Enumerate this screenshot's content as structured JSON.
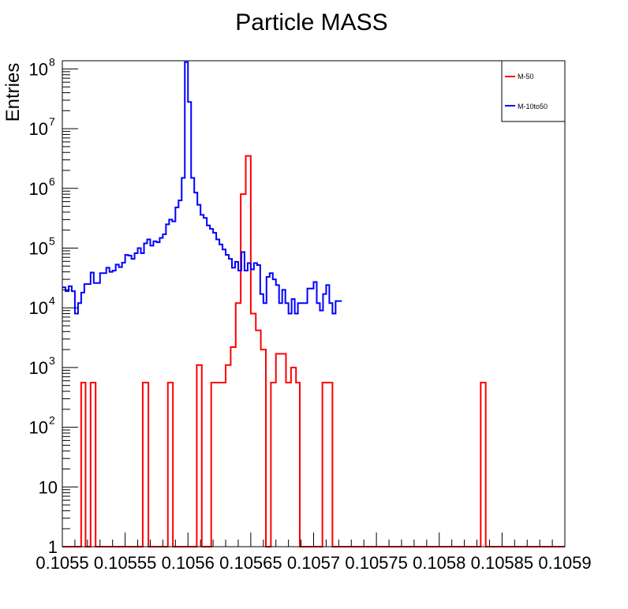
{
  "chart_data": {
    "type": "histogram",
    "title": "Particle MASS",
    "xlabel": "",
    "ylabel": "Entries",
    "xlim": [
      0.1055,
      0.1059
    ],
    "ylim": [
      1,
      130000000
    ],
    "yscale": "log",
    "grid": false,
    "legend_position": "top-right",
    "bin_width": 2.5e-06,
    "bin_start": 0.1055,
    "x_tick_labels": [
      "0.1055",
      "0.10555",
      "0.1056",
      "0.10565",
      "0.1057",
      "0.10575",
      "0.1058",
      "0.10585",
      "0.1059"
    ],
    "x_tick_values": [
      0.1055,
      0.10555,
      0.1056,
      0.10565,
      0.1057,
      0.10575,
      0.1058,
      0.10585,
      0.1059
    ],
    "y_ticks": [
      {
        "value": 1,
        "base": "1",
        "exp": ""
      },
      {
        "value": 10,
        "base": "10",
        "exp": ""
      },
      {
        "value": 100,
        "base": "10",
        "exp": "2"
      },
      {
        "value": 1000,
        "base": "10",
        "exp": "3"
      },
      {
        "value": 10000,
        "base": "10",
        "exp": "4"
      },
      {
        "value": 100000,
        "base": "10",
        "exp": "5"
      },
      {
        "value": 1000000,
        "base": "10",
        "exp": "6"
      },
      {
        "value": 10000000,
        "base": "10",
        "exp": "7"
      },
      {
        "value": 100000000,
        "base": "10",
        "exp": "8"
      }
    ],
    "series": [
      {
        "name": "M-50",
        "color": "#ff0000",
        "bins": [
          {
            "x0": 0.1055,
            "x1": 0.105515,
            "y": 1
          },
          {
            "x0": 0.105515,
            "x1": 0.1055185,
            "y": 560
          },
          {
            "x0": 0.1055185,
            "x1": 0.1055225,
            "y": 1
          },
          {
            "x0": 0.1055225,
            "x1": 0.1055265,
            "y": 560
          },
          {
            "x0": 0.1055265,
            "x1": 0.105564,
            "y": 1
          },
          {
            "x0": 0.105564,
            "x1": 0.1055685,
            "y": 560
          },
          {
            "x0": 0.1055685,
            "x1": 0.105584,
            "y": 1
          },
          {
            "x0": 0.105584,
            "x1": 0.105588,
            "y": 560
          },
          {
            "x0": 0.105588,
            "x1": 0.105607,
            "y": 1
          },
          {
            "x0": 0.105607,
            "x1": 0.105611,
            "y": 1100
          },
          {
            "x0": 0.105611,
            "x1": 0.1056185,
            "y": 1
          },
          {
            "x0": 0.1056185,
            "x1": 0.10563,
            "y": 560
          },
          {
            "x0": 0.10563,
            "x1": 0.105634,
            "y": 1100
          },
          {
            "x0": 0.105634,
            "x1": 0.105638,
            "y": 2200
          },
          {
            "x0": 0.105638,
            "x1": 0.105642,
            "y": 12000
          },
          {
            "x0": 0.105642,
            "x1": 0.105646,
            "y": 800000
          },
          {
            "x0": 0.105646,
            "x1": 0.10565,
            "y": 3500000
          },
          {
            "x0": 0.10565,
            "x1": 0.105654,
            "y": 8000
          },
          {
            "x0": 0.105654,
            "x1": 0.105658,
            "y": 4200
          },
          {
            "x0": 0.105658,
            "x1": 0.105662,
            "y": 2000
          },
          {
            "x0": 0.105662,
            "x1": 0.105666,
            "y": 1
          },
          {
            "x0": 0.105666,
            "x1": 0.10567,
            "y": 560
          },
          {
            "x0": 0.10567,
            "x1": 0.105678,
            "y": 1700
          },
          {
            "x0": 0.105678,
            "x1": 0.105682,
            "y": 560
          },
          {
            "x0": 0.105682,
            "x1": 0.105686,
            "y": 1000
          },
          {
            "x0": 0.105686,
            "x1": 0.105689,
            "y": 560
          },
          {
            "x0": 0.105689,
            "x1": 0.105707,
            "y": 1
          },
          {
            "x0": 0.105707,
            "x1": 0.105715,
            "y": 560
          },
          {
            "x0": 0.105715,
            "x1": 0.105833,
            "y": 1
          },
          {
            "x0": 0.105833,
            "x1": 0.105837,
            "y": 560
          },
          {
            "x0": 0.105837,
            "x1": 0.1059,
            "y": 1
          }
        ]
      },
      {
        "name": "M-10to50",
        "color": "#0000ff",
        "values": [
          22000,
          19000,
          23000,
          19000,
          8000,
          12000,
          18000,
          25000,
          25000,
          39000,
          26000,
          26000,
          38000,
          38000,
          47000,
          40000,
          42000,
          53000,
          48000,
          57000,
          77000,
          75000,
          66000,
          82000,
          100000,
          82000,
          120000,
          140000,
          110000,
          130000,
          125000,
          148000,
          170000,
          250000,
          300000,
          280000,
          480000,
          630000,
          1500000,
          130000000,
          28000000,
          1500000,
          850000,
          530000,
          360000,
          320000,
          240000,
          210000,
          180000,
          140000,
          115000,
          95000,
          77000,
          66000,
          47000,
          59000,
          42000,
          86000,
          42000,
          56000,
          44000,
          56000,
          52000,
          17000,
          12000,
          33000,
          38000,
          30000,
          24000,
          12000,
          20000,
          12000,
          8000,
          14000,
          8000,
          12000,
          12000,
          12000,
          21000,
          21000,
          27000,
          12000,
          9000,
          17000,
          24000,
          12000,
          8000,
          13000,
          13000
        ]
      }
    ]
  }
}
